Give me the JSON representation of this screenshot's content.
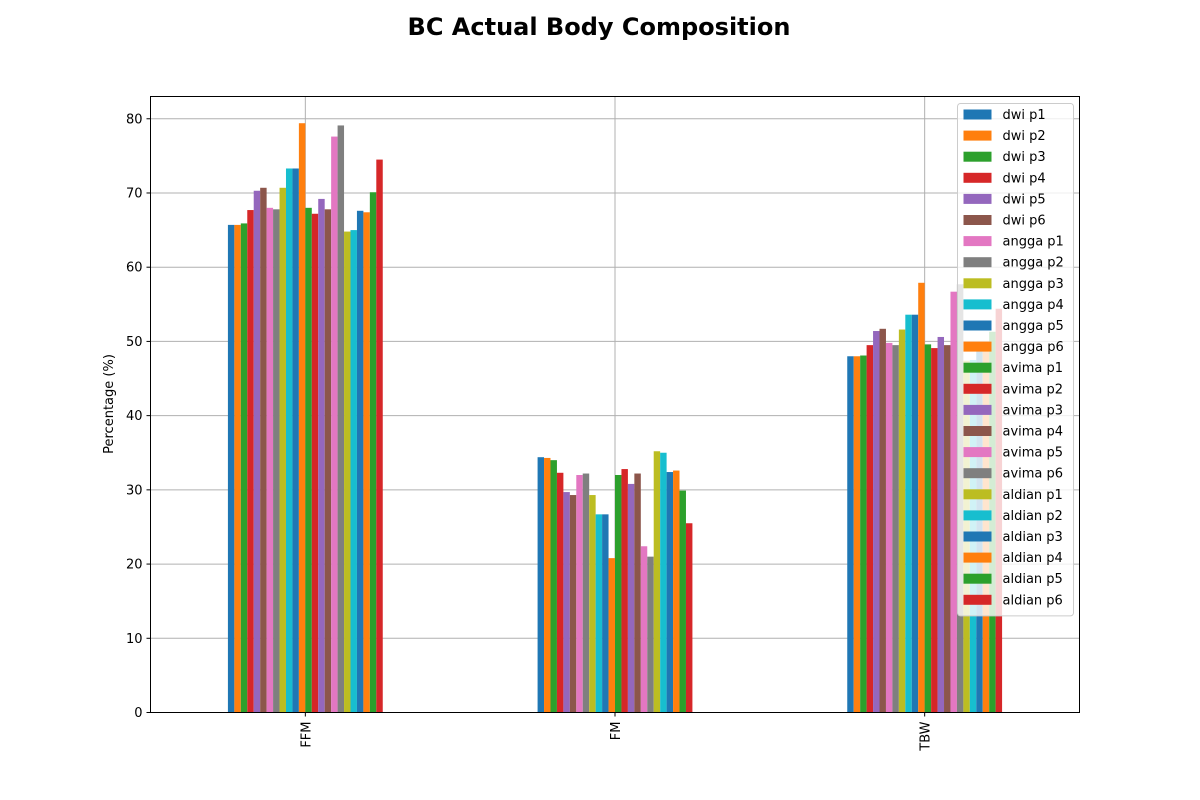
{
  "chart_data": {
    "type": "bar",
    "title": "BC Actual Body Composition",
    "ylabel": "Percentage (%)",
    "xlabel": "",
    "categories": [
      "FFM",
      "FM",
      "TBW"
    ],
    "ylim": [
      0,
      83
    ],
    "yticks": [
      0,
      10,
      20,
      30,
      40,
      50,
      60,
      70,
      80
    ],
    "grid": true,
    "legend_position": "top-right",
    "series": [
      {
        "name": "dwi p1",
        "color": "#1f77b4",
        "values": [
          65.7,
          34.4,
          48.0
        ]
      },
      {
        "name": "dwi p2",
        "color": "#ff7f0e",
        "values": [
          65.7,
          34.3,
          48.0
        ]
      },
      {
        "name": "dwi p3",
        "color": "#2ca02c",
        "values": [
          65.9,
          34.0,
          48.1
        ]
      },
      {
        "name": "dwi p4",
        "color": "#d62728",
        "values": [
          67.7,
          32.3,
          49.5
        ]
      },
      {
        "name": "dwi p5",
        "color": "#9467bd",
        "values": [
          70.3,
          29.7,
          51.4
        ]
      },
      {
        "name": "dwi p6",
        "color": "#8c564b",
        "values": [
          70.7,
          29.3,
          51.7
        ]
      },
      {
        "name": "angga p1",
        "color": "#e377c2",
        "values": [
          68.0,
          32.0,
          49.8
        ]
      },
      {
        "name": "angga p2",
        "color": "#7f7f7f",
        "values": [
          67.8,
          32.2,
          49.5
        ]
      },
      {
        "name": "angga p3",
        "color": "#bcbd22",
        "values": [
          70.7,
          29.3,
          51.6
        ]
      },
      {
        "name": "angga p4",
        "color": "#17becf",
        "values": [
          73.3,
          26.7,
          53.6
        ]
      },
      {
        "name": "angga p5",
        "color": "#1f77b4",
        "values": [
          73.3,
          26.7,
          53.6
        ]
      },
      {
        "name": "angga p6",
        "color": "#ff7f0e",
        "values": [
          79.4,
          20.8,
          57.9
        ]
      },
      {
        "name": "avima p1",
        "color": "#2ca02c",
        "values": [
          68.0,
          32.0,
          49.6
        ]
      },
      {
        "name": "avima p2",
        "color": "#d62728",
        "values": [
          67.2,
          32.8,
          49.1
        ]
      },
      {
        "name": "avima p3",
        "color": "#9467bd",
        "values": [
          69.2,
          30.8,
          50.6
        ]
      },
      {
        "name": "avima p4",
        "color": "#8c564b",
        "values": [
          67.8,
          32.2,
          49.5
        ]
      },
      {
        "name": "avima p5",
        "color": "#e377c2",
        "values": [
          77.6,
          22.4,
          56.7
        ]
      },
      {
        "name": "avima p6",
        "color": "#7f7f7f",
        "values": [
          79.1,
          21.0,
          57.7
        ]
      },
      {
        "name": "aldian p1",
        "color": "#bcbd22",
        "values": [
          64.8,
          35.2,
          47.4
        ]
      },
      {
        "name": "aldian p2",
        "color": "#17becf",
        "values": [
          65.0,
          35.0,
          47.5
        ]
      },
      {
        "name": "aldian p3",
        "color": "#1f77b4",
        "values": [
          67.6,
          32.4,
          49.4
        ]
      },
      {
        "name": "aldian p4",
        "color": "#ff7f0e",
        "values": [
          67.4,
          32.6,
          49.3
        ]
      },
      {
        "name": "aldian p5",
        "color": "#2ca02c",
        "values": [
          70.1,
          29.9,
          51.3
        ]
      },
      {
        "name": "aldian p6",
        "color": "#d62728",
        "values": [
          74.5,
          25.5,
          54.4
        ]
      }
    ]
  }
}
